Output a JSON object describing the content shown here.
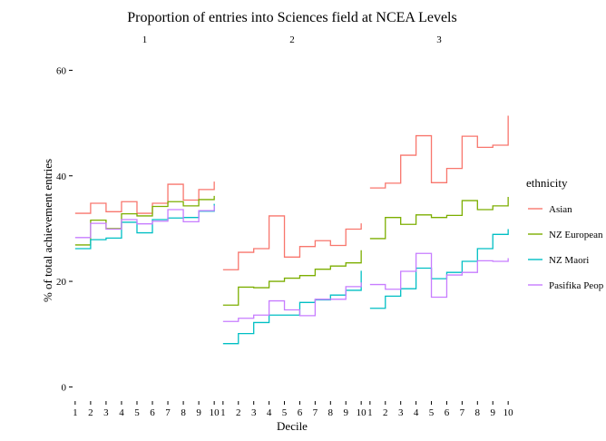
{
  "chart_data": {
    "type": "line",
    "step": true,
    "title": "Proportion of entries into Sciences field at NCEA Levels",
    "xlabel": "Decile",
    "ylabel": "% of total achievement entries",
    "ylim": [
      -2,
      63
    ],
    "yticks": [
      0,
      20,
      40,
      60
    ],
    "xticks": [
      1,
      2,
      3,
      4,
      5,
      6,
      7,
      8,
      9,
      10
    ],
    "xlim": [
      0.95,
      10.05
    ],
    "grid": false,
    "legend": {
      "title": "ethnicity",
      "position": "right",
      "entries": [
        "Asian",
        "NZ European",
        "NZ Maori",
        "Pasifika Peop"
      ]
    },
    "colors": {
      "Asian": "#F8766D",
      "NZ European": "#7CAE00",
      "NZ Maori": "#00BFC4",
      "Pasifika Peoples": "#C77CFF"
    },
    "facets": [
      {
        "label": "1",
        "series": [
          {
            "name": "Asian",
            "values": [
              32.9,
              34.8,
              33.2,
              35.1,
              32.9,
              34.8,
              38.4,
              35.4,
              37.4,
              38.9
            ]
          },
          {
            "name": "NZ European",
            "values": [
              26.9,
              31.6,
              30.0,
              32.8,
              32.4,
              34.2,
              35.1,
              34.3,
              35.5,
              36.2
            ]
          },
          {
            "name": "NZ Maori",
            "values": [
              26.2,
              27.9,
              28.2,
              31.2,
              29.2,
              31.7,
              32.0,
              32.1,
              33.3,
              34.7
            ]
          },
          {
            "name": "Pasifika Peoples",
            "values": [
              28.3,
              31.0,
              29.9,
              31.7,
              30.9,
              31.4,
              33.6,
              31.3,
              33.4,
              34.4
            ]
          }
        ]
      },
      {
        "label": "2",
        "series": [
          {
            "name": "Asian",
            "values": [
              22.2,
              25.5,
              26.2,
              32.4,
              24.6,
              26.6,
              27.7,
              26.8,
              29.9,
              31.0
            ]
          },
          {
            "name": "NZ European",
            "values": [
              15.5,
              18.9,
              18.8,
              20.0,
              20.6,
              21.1,
              22.3,
              22.9,
              23.5,
              25.9
            ]
          },
          {
            "name": "NZ Maori",
            "values": [
              8.2,
              10.1,
              12.2,
              13.6,
              13.6,
              16.0,
              16.5,
              17.4,
              18.3,
              22.0
            ]
          },
          {
            "name": "Pasifika Peoples",
            "values": [
              12.4,
              13.0,
              13.6,
              16.3,
              14.6,
              13.5,
              16.6,
              16.6,
              19.0,
              19.8
            ]
          }
        ]
      },
      {
        "label": "3",
        "series": [
          {
            "name": "Asian",
            "values": [
              37.7,
              38.6,
              43.9,
              47.6,
              38.7,
              41.4,
              47.5,
              45.4,
              45.8,
              51.4
            ]
          },
          {
            "name": "NZ European",
            "values": [
              28.1,
              32.1,
              30.8,
              32.6,
              32.1,
              32.5,
              35.3,
              33.6,
              34.3,
              36.0
            ]
          },
          {
            "name": "NZ Maori",
            "values": [
              14.9,
              17.2,
              18.6,
              22.5,
              20.5,
              21.7,
              23.8,
              26.2,
              28.9,
              29.9
            ]
          },
          {
            "name": "Pasifika Peoples",
            "values": [
              19.4,
              18.5,
              21.9,
              25.3,
              17.0,
              21.2,
              21.7,
              23.9,
              23.8,
              24.4
            ]
          }
        ]
      }
    ]
  }
}
